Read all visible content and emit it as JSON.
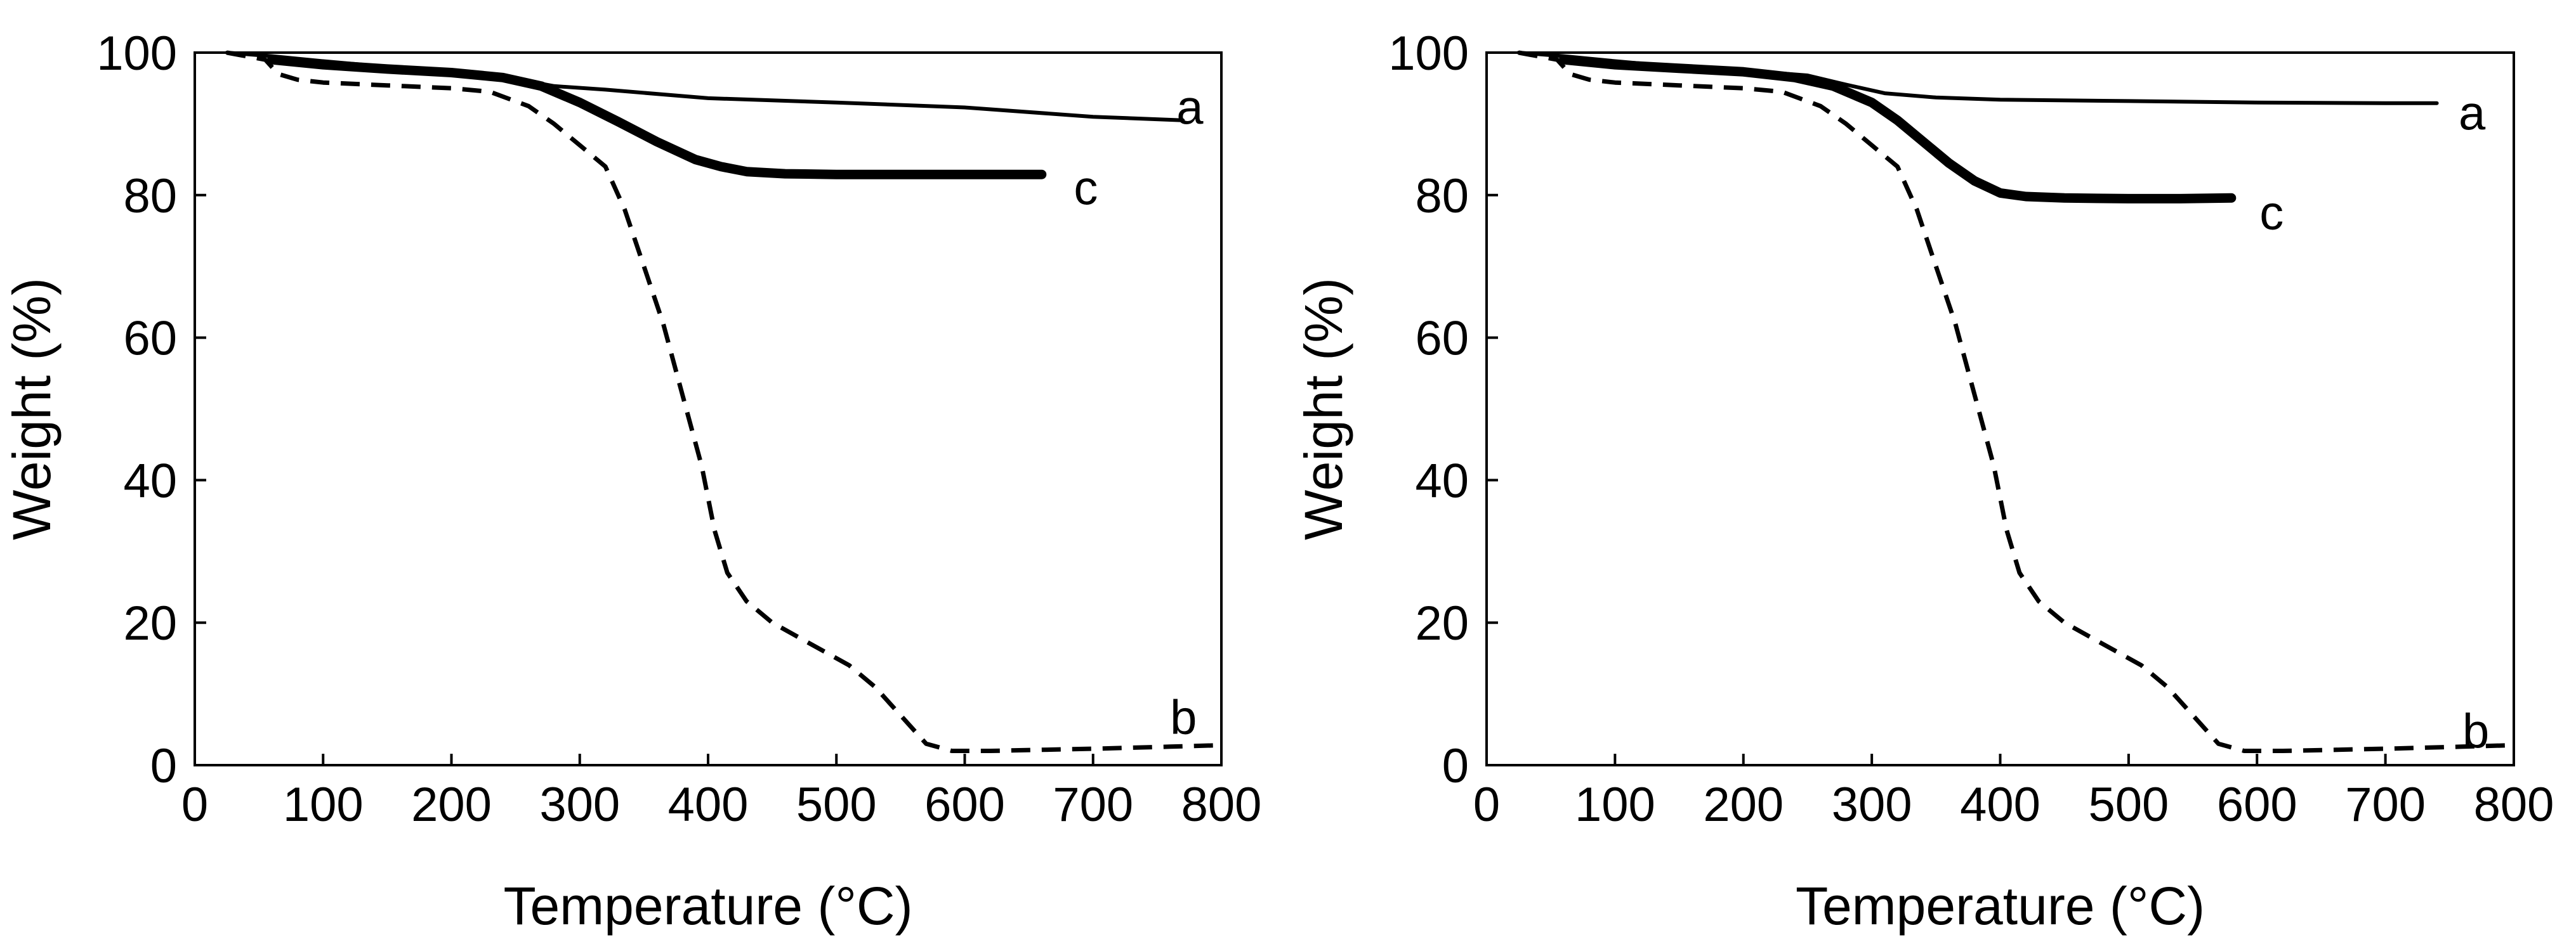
{
  "chart_data": [
    {
      "type": "line",
      "title": "",
      "xlabel": "Temperature (°C)",
      "ylabel": "Weight (%)",
      "xlim": [
        0,
        800
      ],
      "ylim": [
        0,
        100
      ],
      "xticks": [
        "0",
        "100",
        "200",
        "300",
        "400",
        "500",
        "600",
        "700",
        "800"
      ],
      "yticks": [
        "0",
        "20",
        "40",
        "60",
        "80",
        "100"
      ],
      "grid": false,
      "series": [
        {
          "name": "a",
          "style": "thin-solid",
          "x": [
            25,
            60,
            100,
            150,
            200,
            250,
            280,
            320,
            400,
            500,
            600,
            700,
            770
          ],
          "y": [
            100,
            99.5,
            98.8,
            98,
            97.3,
            96.3,
            95.3,
            94.8,
            93.6,
            93,
            92.3,
            91,
            90.5
          ]
        },
        {
          "name": "b",
          "style": "dashed",
          "x": [
            25,
            55,
            65,
            80,
            100,
            150,
            200,
            230,
            260,
            280,
            300,
            320,
            335,
            350,
            365,
            380,
            395,
            405,
            415,
            430,
            450,
            480,
            510,
            530,
            550,
            570,
            590,
            620,
            700,
            760,
            800
          ],
          "y": [
            100,
            99,
            97,
            96.2,
            95.8,
            95.4,
            95,
            94.5,
            92.5,
            90,
            87,
            84,
            78,
            70,
            62,
            52,
            42,
            33,
            27,
            23,
            20,
            17,
            14,
            11,
            7,
            3,
            2,
            2,
            2.3,
            2.6,
            2.8
          ]
        },
        {
          "name": "c",
          "style": "thick-solid",
          "x": [
            60,
            100,
            150,
            200,
            240,
            270,
            300,
            330,
            360,
            390,
            410,
            430,
            460,
            500,
            550,
            600,
            660
          ],
          "y": [
            99,
            98.3,
            97.7,
            97.2,
            96.5,
            95.3,
            93,
            90.3,
            87.5,
            85,
            84,
            83.3,
            83,
            82.9,
            82.9,
            82.9,
            82.9
          ]
        }
      ],
      "labels": [
        {
          "text": "a",
          "x": 765,
          "y": 92.3
        },
        {
          "text": "b",
          "x": 760,
          "y": 6.7
        },
        {
          "text": "c",
          "x": 685,
          "y": 81
        }
      ]
    },
    {
      "type": "line",
      "title": "",
      "xlabel": "Temperature (°C)",
      "ylabel": "Weight (%)",
      "xlim": [
        0,
        800
      ],
      "ylim": [
        0,
        100
      ],
      "xticks": [
        "0",
        "100",
        "200",
        "300",
        "400",
        "500",
        "600",
        "700",
        "800"
      ],
      "yticks": [
        "0",
        "20",
        "40",
        "60",
        "80",
        "100"
      ],
      "grid": false,
      "series": [
        {
          "name": "a",
          "style": "thin-solid",
          "x": [
            25,
            60,
            100,
            150,
            200,
            250,
            280,
            310,
            350,
            400,
            500,
            600,
            700,
            740
          ],
          "y": [
            100,
            99.5,
            98.8,
            98,
            97.5,
            96.8,
            95.5,
            94.3,
            93.7,
            93.4,
            93.2,
            93,
            92.9,
            92.9
          ]
        },
        {
          "name": "b",
          "style": "dashed",
          "x": [
            25,
            55,
            65,
            80,
            100,
            150,
            200,
            230,
            260,
            280,
            300,
            320,
            335,
            350,
            365,
            380,
            395,
            405,
            415,
            430,
            450,
            480,
            510,
            530,
            550,
            570,
            590,
            620,
            700,
            760,
            800
          ],
          "y": [
            100,
            99,
            97,
            96.2,
            95.8,
            95.4,
            95,
            94.5,
            92.5,
            90,
            87,
            84,
            78,
            70,
            62,
            52,
            42,
            33,
            27,
            23,
            20,
            17,
            14,
            11,
            7,
            3,
            2,
            2,
            2.3,
            2.6,
            2.8
          ]
        },
        {
          "name": "c",
          "style": "thick-solid",
          "x": [
            60,
            100,
            150,
            200,
            240,
            270,
            300,
            320,
            340,
            360,
            380,
            400,
            420,
            450,
            500,
            540,
            580
          ],
          "y": [
            99,
            98.3,
            97.8,
            97.3,
            96.5,
            95.3,
            93,
            90.5,
            87.5,
            84.5,
            82,
            80.3,
            79.8,
            79.6,
            79.5,
            79.5,
            79.6
          ]
        }
      ],
      "labels": [
        {
          "text": "a",
          "x": 757,
          "y": 91.5
        },
        {
          "text": "b",
          "x": 760,
          "y": 4.8
        },
        {
          "text": "c",
          "x": 602,
          "y": 77.5
        }
      ]
    }
  ]
}
